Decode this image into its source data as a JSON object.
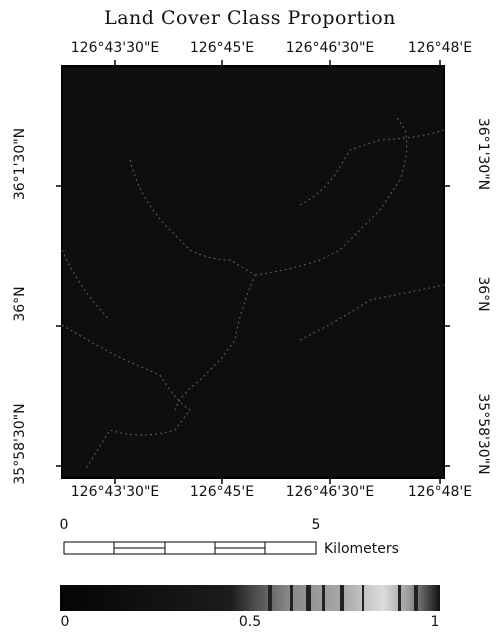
{
  "title": "Land Cover Class Proportion",
  "top_labels": [
    "126°43'30\"E",
    "126°45'E",
    "126°46'30\"E",
    "126°48'E"
  ],
  "bottom_labels": [
    "126°43'30\"E",
    "126°45'E",
    "126°46'30\"E",
    "126°48'E"
  ],
  "left_labels": [
    "36°1'30\"N",
    "36°N",
    "35°58'30\"N"
  ],
  "right_labels": [
    "36°1'30\"N",
    "36°N",
    "35°58'30\"N"
  ],
  "scale_bar": {
    "ticks": [
      0,
      5
    ],
    "unit": "Kilometers"
  },
  "colorbar": {
    "ticks": [
      0,
      0.5,
      1
    ]
  }
}
